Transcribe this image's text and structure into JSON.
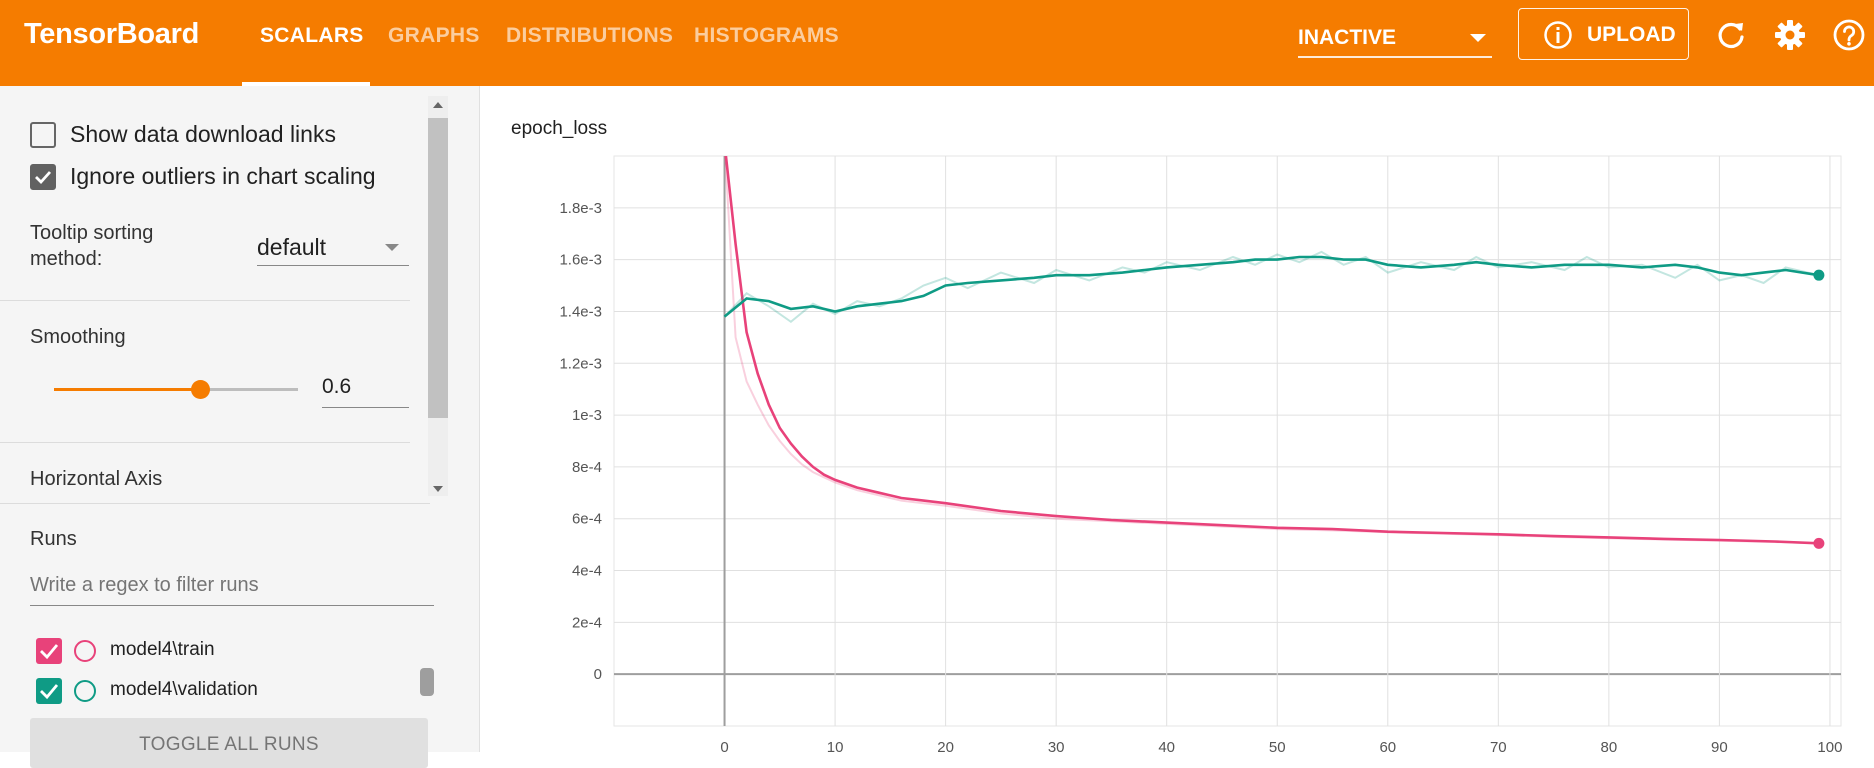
{
  "header": {
    "brand": "TensorBoard",
    "tabs": [
      {
        "label": "SCALARS",
        "active": true
      },
      {
        "label": "GRAPHS",
        "active": false
      },
      {
        "label": "DISTRIBUTIONS",
        "active": false
      },
      {
        "label": "HISTOGRAMS",
        "active": false
      }
    ],
    "status_select": "INACTIVE",
    "upload_label": "UPLOAD",
    "icons": [
      "info-icon",
      "refresh-icon",
      "settings-icon",
      "help-icon"
    ],
    "accent_color": "#f57c00"
  },
  "sidebar": {
    "show_download_links": {
      "label": "Show data download links",
      "checked": false
    },
    "ignore_outliers": {
      "label": "Ignore outliers in chart scaling",
      "checked": true
    },
    "tooltip_sorting": {
      "label_line1": "Tooltip sorting",
      "label_line2": "method:",
      "value": "default"
    },
    "smoothing": {
      "label": "Smoothing",
      "value": "0.6",
      "level": 0.6
    },
    "horizontal_axis_label": "Horizontal Axis",
    "runs": {
      "label": "Runs",
      "filter_placeholder": "Write a regex to filter runs",
      "items": [
        {
          "label": "model4\\train",
          "checked": true,
          "color": "#e8427a"
        },
        {
          "label": "model4\\validation",
          "checked": true,
          "color": "#0f9b85"
        }
      ],
      "toggle_label": "TOGGLE ALL RUNS"
    }
  },
  "chart_data": {
    "type": "line",
    "title": "epoch_loss",
    "xlim": [
      -10,
      101
    ],
    "ylim": [
      -0.0002,
      0.002
    ],
    "x_ticks": [
      "0",
      "10",
      "20",
      "30",
      "40",
      "50",
      "60",
      "70",
      "80",
      "90",
      "100"
    ],
    "y_ticks": [
      "0",
      "2e-4",
      "4e-4",
      "6e-4",
      "8e-4",
      "1e-3",
      "1.2e-3",
      "1.4e-3",
      "1.6e-3",
      "1.8e-3"
    ],
    "grid": true,
    "series": [
      {
        "name": "model4\\train",
        "color": "#e8427a",
        "x": [
          0,
          1,
          2,
          3,
          4,
          5,
          6,
          7,
          8,
          9,
          10,
          12,
          14,
          16,
          18,
          20,
          25,
          30,
          35,
          40,
          45,
          50,
          55,
          60,
          65,
          70,
          75,
          80,
          85,
          90,
          95,
          99
        ],
        "smoothed": [
          0.00222,
          0.00166,
          0.00132,
          0.00116,
          0.00104,
          0.00095,
          0.00089,
          0.00084,
          0.0008,
          0.00077,
          0.00075,
          0.00072,
          0.0007,
          0.00068,
          0.00067,
          0.00066,
          0.00063,
          0.00061,
          0.000595,
          0.000585,
          0.000575,
          0.000565,
          0.00056,
          0.00055,
          0.000545,
          0.00054,
          0.000533,
          0.000528,
          0.000522,
          0.000518,
          0.000512,
          0.000505
        ],
        "raw": [
          0.00222,
          0.0013,
          0.00113,
          0.00104,
          0.00096,
          0.0009,
          0.00085,
          0.00081,
          0.00078,
          0.00076,
          0.00074,
          0.00071,
          0.00069,
          0.00067,
          0.00066,
          0.00065,
          0.00062,
          0.0006,
          0.00059,
          0.00058,
          0.00057,
          0.00056,
          0.000555,
          0.000548,
          0.000542,
          0.000537,
          0.00053,
          0.000525,
          0.00052,
          0.000515,
          0.00051,
          0.000505
        ]
      },
      {
        "name": "model4\\validation",
        "color": "#0f9b85",
        "x": [
          0,
          2,
          4,
          6,
          8,
          10,
          12,
          14,
          16,
          18,
          20,
          22,
          25,
          28,
          30,
          33,
          36,
          38,
          40,
          43,
          46,
          48,
          50,
          52,
          54,
          56,
          58,
          60,
          63,
          66,
          68,
          70,
          73,
          76,
          78,
          80,
          83,
          86,
          88,
          90,
          92,
          94,
          96,
          99
        ],
        "smoothed": [
          0.00138,
          0.00145,
          0.00144,
          0.00141,
          0.00142,
          0.0014,
          0.00142,
          0.00143,
          0.00144,
          0.00146,
          0.0015,
          0.00151,
          0.00152,
          0.00153,
          0.00154,
          0.00154,
          0.00155,
          0.00156,
          0.00157,
          0.00158,
          0.00159,
          0.0016,
          0.0016,
          0.00161,
          0.00161,
          0.0016,
          0.0016,
          0.00158,
          0.00157,
          0.00158,
          0.00159,
          0.00158,
          0.00157,
          0.00158,
          0.00158,
          0.00158,
          0.00157,
          0.00158,
          0.00157,
          0.00155,
          0.00154,
          0.00155,
          0.00156,
          0.00154
        ],
        "raw": [
          0.00138,
          0.00147,
          0.00142,
          0.00136,
          0.00143,
          0.00139,
          0.00144,
          0.00142,
          0.00145,
          0.0015,
          0.00153,
          0.00149,
          0.00155,
          0.00151,
          0.00156,
          0.00152,
          0.00157,
          0.00155,
          0.00159,
          0.00156,
          0.00161,
          0.00158,
          0.00162,
          0.00159,
          0.00163,
          0.00158,
          0.00161,
          0.00155,
          0.00159,
          0.00156,
          0.00161,
          0.00157,
          0.00159,
          0.00156,
          0.00161,
          0.00157,
          0.00158,
          0.00153,
          0.00158,
          0.00152,
          0.00154,
          0.00151,
          0.00157,
          0.00154
        ]
      }
    ]
  }
}
